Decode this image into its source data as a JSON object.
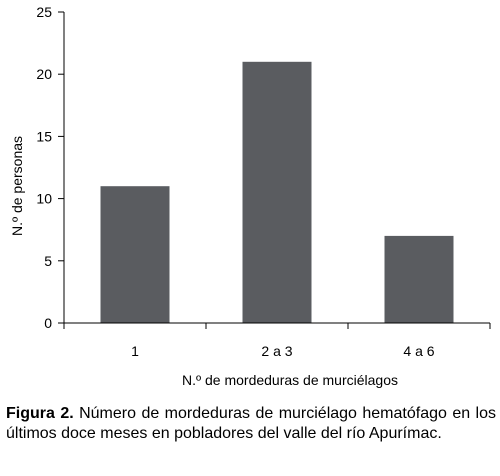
{
  "chart_data": {
    "type": "bar",
    "categories": [
      "1",
      "2 a 3",
      "4 a 6"
    ],
    "values": [
      11,
      21,
      7
    ],
    "xlabel": "N.º de mordeduras de murciélagos",
    "ylabel": "N.º de personas",
    "ylim": [
      0,
      25
    ],
    "yticks": [
      0,
      5,
      10,
      15,
      20,
      25
    ],
    "grid": false,
    "legend": "none",
    "colors": {
      "bar": "#5a5c60",
      "axis": "#000000"
    }
  },
  "caption": {
    "label": "Figura 2.",
    "text": " Número de mordeduras de murciélago hematófago en los últimos doce meses en pobladores del valle del río Apurímac."
  }
}
